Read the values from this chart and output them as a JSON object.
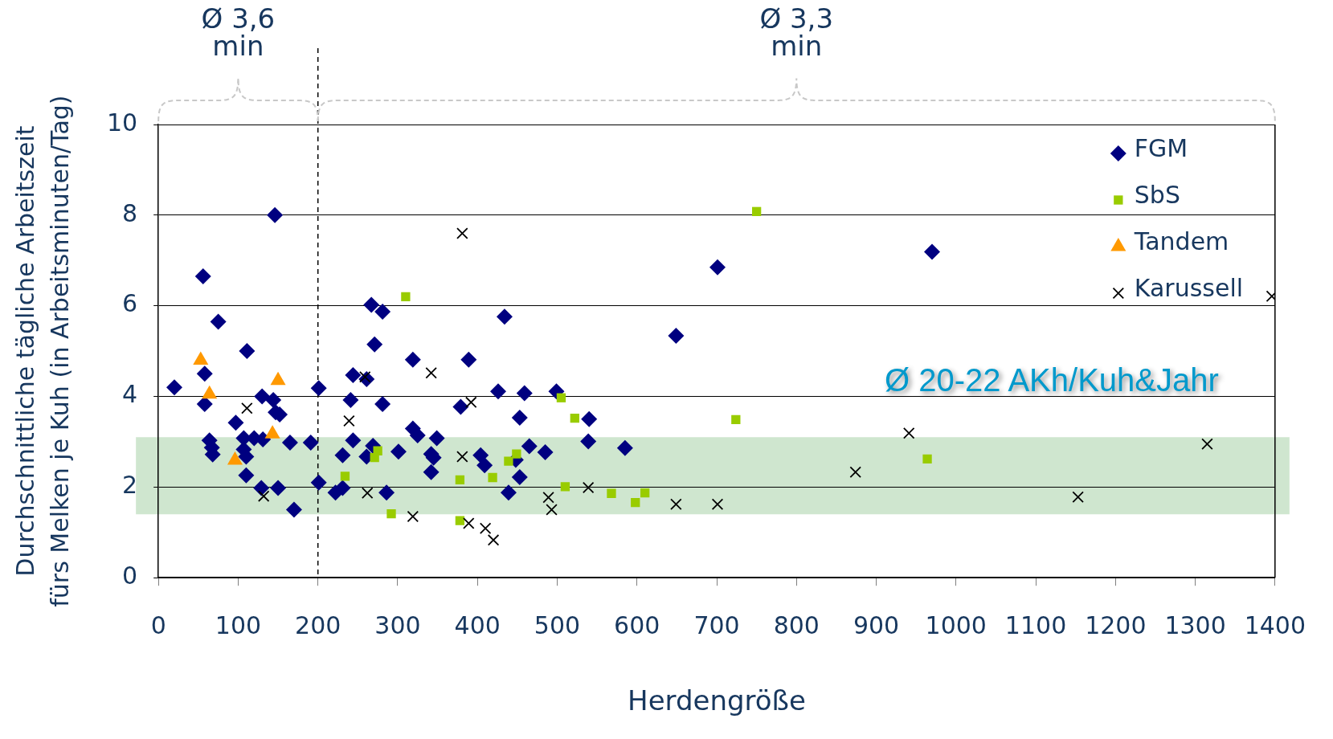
{
  "chart_data": {
    "type": "scatter",
    "xlabel": "Herdengröße",
    "ylabel": "Durchschnittliche tägliche Arbeitszeit fürs Melken je Kuh (in Arbeitsminuten/Tag)",
    "xlim": [
      0,
      1400
    ],
    "xticks": [
      0,
      100,
      200,
      300,
      400,
      500,
      600,
      700,
      800,
      900,
      1000,
      1100,
      1200,
      1300,
      1400
    ],
    "ylim": [
      0,
      10
    ],
    "yticks": [
      0,
      2,
      4,
      6,
      8,
      10
    ],
    "grid": "y",
    "legend": "top right",
    "annotations": [
      "Ø 3,6 min",
      "Ø 3,3 min"
    ],
    "ref_lines": [
      {
        "axis": "x",
        "value": 200,
        "color": "#000000",
        "line_style": "dashed"
      }
    ],
    "bands": [
      {
        "axis": "y",
        "from": 1.4,
        "to": 3.1,
        "color": "#cfe6cf",
        "label": "Ø 20-22 AKh/Kuh&Jahr"
      }
    ],
    "series": [
      {
        "name": "FGM",
        "color": "#000080",
        "marker": "diamond",
        "x": [
          20,
          56,
          58,
          58,
          64,
          67,
          68,
          75,
          97,
          107,
          107,
          110,
          110,
          111,
          120,
          129,
          130,
          131,
          144,
          146,
          147,
          152,
          150,
          165,
          170,
          191,
          201,
          201,
          222,
          231,
          231,
          241,
          244,
          244,
          261,
          261,
          267,
          269,
          271,
          281,
          281,
          286,
          301,
          319,
          319,
          325,
          342,
          345,
          342,
          349,
          379,
          389,
          404,
          409,
          426,
          434,
          439,
          448,
          453,
          453,
          459,
          465,
          485,
          499,
          539,
          540,
          585,
          649,
          701,
          970
        ],
        "values": [
          4.2,
          6.65,
          4.5,
          3.83,
          3.03,
          2.87,
          2.72,
          5.65,
          3.42,
          3.08,
          2.83,
          2.67,
          2.26,
          5.0,
          3.08,
          1.98,
          4.0,
          3.05,
          3.92,
          8.0,
          3.65,
          3.6,
          1.98,
          2.98,
          1.5,
          2.98,
          4.18,
          2.1,
          1.88,
          2.7,
          1.98,
          3.92,
          4.47,
          3.03,
          4.38,
          2.67,
          6.02,
          2.91,
          5.15,
          5.87,
          3.83,
          1.88,
          2.78,
          4.81,
          3.29,
          3.14,
          2.73,
          2.65,
          2.33,
          3.08,
          3.77,
          4.81,
          2.7,
          2.48,
          4.11,
          5.76,
          1.88,
          2.6,
          3.53,
          2.22,
          4.07,
          2.9,
          2.77,
          4.11,
          3.01,
          3.5,
          2.86,
          5.34,
          6.85,
          7.19
        ]
      },
      {
        "name": "SbS",
        "color": "#99cc00",
        "marker": "square",
        "x": [
          234,
          271,
          275,
          292,
          310,
          378,
          378,
          419,
          439,
          449,
          505,
          510,
          522,
          568,
          598,
          610,
          724,
          750,
          964
        ],
        "values": [
          2.24,
          2.65,
          2.8,
          1.41,
          6.2,
          2.16,
          1.26,
          2.21,
          2.57,
          2.73,
          3.97,
          2.01,
          3.52,
          1.86,
          1.66,
          1.87,
          3.49,
          8.08,
          2.62
        ]
      },
      {
        "name": "Tandem",
        "color": "#ff9900",
        "marker": "triangle",
        "x": [
          53,
          64,
          96,
          143,
          150
        ],
        "values": [
          4.8,
          4.05,
          2.59,
          3.17,
          4.35
        ]
      },
      {
        "name": "Karussell",
        "color": "#000000",
        "marker": "cross",
        "x": [
          111,
          132,
          239,
          259,
          262,
          319,
          342,
          381,
          381,
          389,
          392,
          410,
          420,
          489,
          493,
          539,
          649,
          701,
          874,
          941,
          1153,
          1315,
          1396
        ],
        "values": [
          3.74,
          1.8,
          3.46,
          4.43,
          1.87,
          1.35,
          4.52,
          7.6,
          2.67,
          1.2,
          3.87,
          1.09,
          0.83,
          1.77,
          1.5,
          1.99,
          1.62,
          1.62,
          2.33,
          3.19,
          1.78,
          2.95,
          6.21
        ]
      }
    ]
  }
}
